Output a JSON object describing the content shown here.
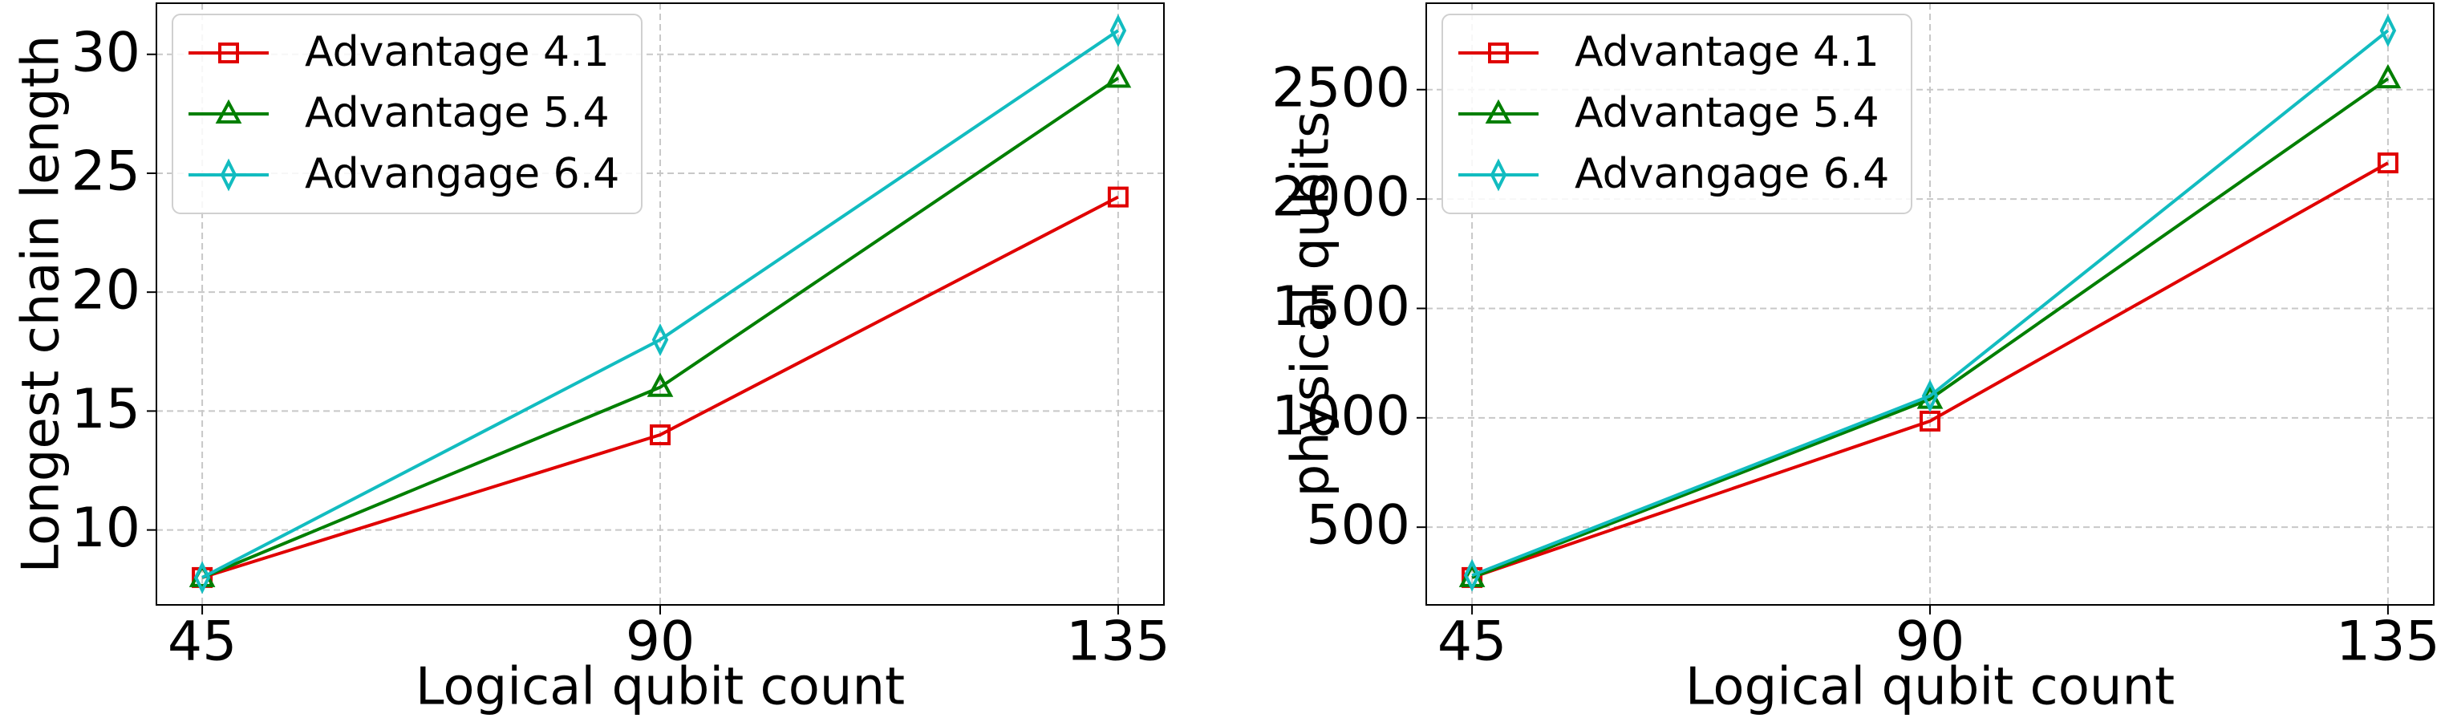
{
  "chart_data": [
    {
      "type": "line",
      "xlabel": "Logical qubit count",
      "ylabel": "Longest chain length",
      "x": [
        45,
        90,
        135
      ],
      "xlim": [
        40.5,
        139.5
      ],
      "xticks": [
        45,
        90,
        135
      ],
      "ylim": [
        6.85,
        32.15
      ],
      "yticks": [
        10,
        15,
        20,
        25,
        30
      ],
      "grid": true,
      "legend": "upper left",
      "series": [
        {
          "name": "Advantage 4.1",
          "color": "#e00000",
          "marker": "square",
          "values": [
            8,
            14,
            24
          ]
        },
        {
          "name": "Advantage 5.4",
          "color": "#007f00",
          "marker": "triangle",
          "values": [
            8,
            16,
            29
          ]
        },
        {
          "name": "Advangage 6.4",
          "color": "#12bcc0",
          "marker": "thin_diamond",
          "values": [
            8,
            18,
            31
          ]
        }
      ]
    },
    {
      "type": "line",
      "xlabel": "Logical qubit count",
      "ylabel": "physical qubits",
      "x": [
        45,
        90,
        135
      ],
      "xlim": [
        40.5,
        139.5
      ],
      "xticks": [
        45,
        90,
        135
      ],
      "ylim": [
        145,
        2895
      ],
      "yticks": [
        500,
        1000,
        1500,
        2000,
        2500
      ],
      "grid": true,
      "legend": "upper left",
      "series": [
        {
          "name": "Advantage 4.1",
          "color": "#e00000",
          "marker": "square",
          "values": [
            270,
            985,
            2165
          ]
        },
        {
          "name": "Advantage 5.4",
          "color": "#007f00",
          "marker": "triangle",
          "values": [
            270,
            1085,
            2550
          ]
        },
        {
          "name": "Advangage 6.4",
          "color": "#12bcc0",
          "marker": "thin_diamond",
          "values": [
            280,
            1100,
            2770
          ]
        }
      ]
    }
  ]
}
